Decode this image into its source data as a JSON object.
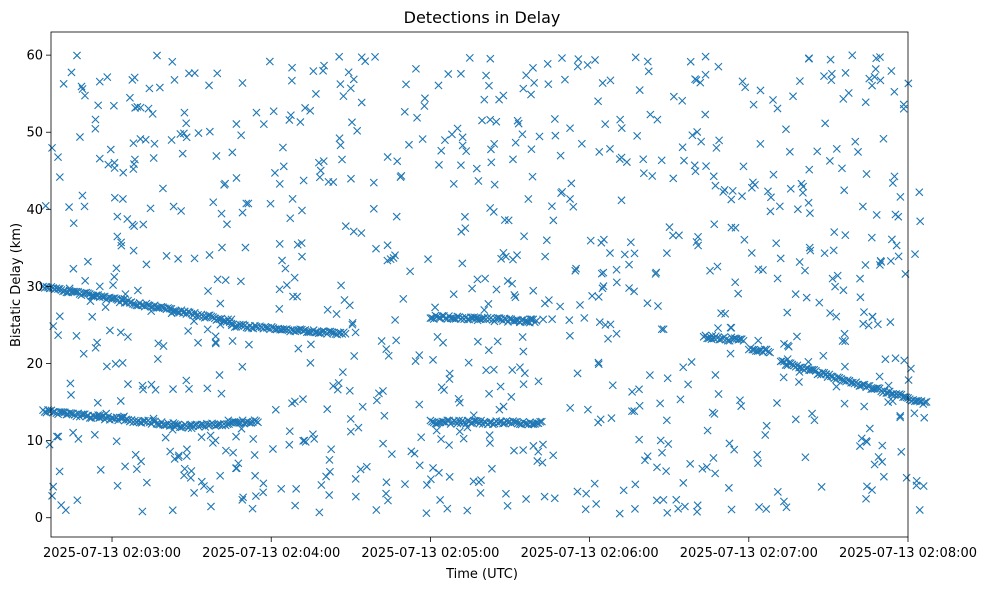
{
  "chart_data": {
    "type": "scatter",
    "title": "Detections in Delay",
    "xlabel": "Time (UTC)",
    "ylabel": "Bistatic Delay (km)",
    "x_ticks": [
      "2025-07-13 02:03:00",
      "2025-07-13 02:04:00",
      "2025-07-13 02:05:00",
      "2025-07-13 02:06:00",
      "2025-07-13 02:07:00",
      "2025-07-13 02:08:00"
    ],
    "y_ticks": [
      "0",
      "10",
      "20",
      "30",
      "40",
      "50",
      "60"
    ],
    "xlim": [
      "2025-07-13 02:02:37",
      "2025-07-13 02:08:00"
    ],
    "ylim": [
      -2.5,
      63
    ],
    "grid": false,
    "marker": "x",
    "color": "#1f77b4",
    "series": [
      {
        "note_tracks": "estimated track segments (start/end time in seconds after 02:00:00, delay km)",
        "tracks": [
          {
            "t0": 154,
            "t1": 225,
            "y0": 30.0,
            "y1": 25.5
          },
          {
            "t0": 225,
            "t1": 268,
            "y0": 25.0,
            "y1": 23.8
          },
          {
            "t0": 154,
            "t1": 210,
            "y0": 13.8,
            "y1": 11.8
          },
          {
            "t0": 210,
            "t1": 235,
            "y0": 11.8,
            "y1": 12.6
          },
          {
            "t0": 300,
            "t1": 342,
            "y0": 12.4,
            "y1": 12.3
          },
          {
            "t0": 300,
            "t1": 340,
            "y0": 26.0,
            "y1": 25.5
          },
          {
            "t0": 403,
            "t1": 418,
            "y0": 23.5,
            "y1": 23.0
          },
          {
            "t0": 420,
            "t1": 428,
            "y0": 22.0,
            "y1": 21.5
          },
          {
            "t0": 432,
            "t1": 487,
            "y0": 20.2,
            "y1": 14.8
          }
        ]
      }
    ]
  }
}
